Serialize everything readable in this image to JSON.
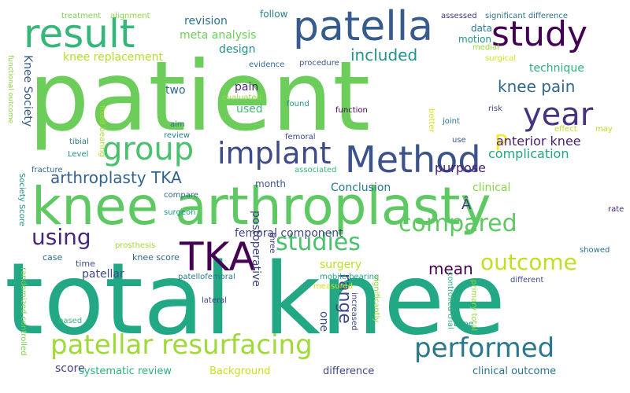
{
  "words": [
    {
      "text": "patient",
      "color": "#6ccd5a"
    },
    {
      "text": "total knee",
      "color": "#22a884"
    },
    {
      "text": "knee arthroplasty",
      "color": "#5ec962"
    },
    {
      "text": "patella",
      "color": "#365c8d"
    },
    {
      "text": "result",
      "color": "#35b779"
    },
    {
      "text": "study",
      "color": "#440154"
    },
    {
      "text": "Method",
      "color": "#3b528b"
    },
    {
      "text": "TKA",
      "color": "#440154"
    },
    {
      "text": "year",
      "color": "#46327e"
    },
    {
      "text": "group",
      "color": "#4ac16d"
    },
    {
      "text": "implant",
      "color": "#3e4a89"
    },
    {
      "text": "patellar resurfacing",
      "color": "#a0da39"
    },
    {
      "text": "performed",
      "color": "#2a788e"
    },
    {
      "text": "studies",
      "color": "#4ac16d"
    },
    {
      "text": "compared",
      "color": "#5ec962"
    },
    {
      "text": "outcome",
      "color": "#c2df23"
    },
    {
      "text": "using",
      "color": "#482878"
    },
    {
      "text": "arthroplasty TKA",
      "color": "#33638d"
    },
    {
      "text": "included",
      "color": "#21918c"
    },
    {
      "text": "knee pain",
      "color": "#31688e"
    },
    {
      "text": "P",
      "color": "#fde725"
    },
    {
      "text": "anterior knee",
      "color": "#481f70"
    },
    {
      "text": "complication",
      "color": "#21a585"
    },
    {
      "text": "purpose",
      "color": "#482576"
    },
    {
      "text": "range",
      "color": "#3f4788"
    },
    {
      "text": "mean",
      "color": "#440154"
    },
    {
      "text": "knee replacement",
      "color": "#b5de2b"
    },
    {
      "text": "meta analysis",
      "color": "#6ece58"
    },
    {
      "text": "revision",
      "color": "#2c728e"
    },
    {
      "text": "design",
      "color": "#21918c"
    },
    {
      "text": "pain",
      "color": "#482878"
    },
    {
      "text": "two",
      "color": "#31688e"
    },
    {
      "text": "used",
      "color": "#3fbc73"
    },
    {
      "text": "month",
      "color": "#39568c"
    },
    {
      "text": "Conclusion",
      "color": "#2a788e"
    },
    {
      "text": "clinical",
      "color": "#86d549"
    },
    {
      "text": "technique",
      "color": "#2db27d"
    },
    {
      "text": "follow",
      "color": "#26828e"
    },
    {
      "text": "data",
      "color": "#2a788e"
    },
    {
      "text": "motion",
      "color": "#21918c"
    },
    {
      "text": "Knee Society",
      "color": "#38598c"
    },
    {
      "text": "femoral component",
      "color": "#404688"
    },
    {
      "text": "postoperative",
      "color": "#414487"
    },
    {
      "text": "surgery",
      "color": "#bddf26"
    },
    {
      "text": "patellar",
      "color": "#3e4a89"
    },
    {
      "text": "one",
      "color": "#3b528b"
    },
    {
      "text": "score",
      "color": "#424086"
    },
    {
      "text": "systematic review",
      "color": "#2db27d"
    },
    {
      "text": "Background",
      "color": "#c8e020"
    },
    {
      "text": "difference",
      "color": "#3f4788"
    },
    {
      "text": "clinical outcome",
      "color": "#2c728e"
    },
    {
      "text": "case",
      "color": "#2e6e8e"
    },
    {
      "text": "knee score",
      "color": "#31688e"
    },
    {
      "text": "time",
      "color": "#3b528b"
    },
    {
      "text": "Â",
      "color": "#433e85"
    },
    {
      "text": "treatment",
      "color": "#7ad151"
    },
    {
      "text": "alignment",
      "color": "#8fd744"
    },
    {
      "text": "assessed",
      "color": "#453781"
    },
    {
      "text": "significant difference",
      "color": "#2c728e"
    },
    {
      "text": "medial",
      "color": "#9bd93c"
    },
    {
      "text": "evidence",
      "color": "#31688e"
    },
    {
      "text": "procedure",
      "color": "#3b528b"
    },
    {
      "text": "surgical",
      "color": "#d0e11c"
    },
    {
      "text": "evaluated",
      "color": "#90d743"
    },
    {
      "text": "found",
      "color": "#21918c"
    },
    {
      "text": "function",
      "color": "#440154"
    },
    {
      "text": "better",
      "color": "#d8e219"
    },
    {
      "text": "risk",
      "color": "#3e4989"
    },
    {
      "text": "joint",
      "color": "#2a788e"
    },
    {
      "text": "effect",
      "color": "#c0df25"
    },
    {
      "text": "may",
      "color": "#b8de29"
    },
    {
      "text": "review",
      "color": "#287c8e"
    },
    {
      "text": "aim",
      "color": "#2c728e"
    },
    {
      "text": "femoral",
      "color": "#3e4989"
    },
    {
      "text": "use",
      "color": "#3b528b"
    },
    {
      "text": "tibial",
      "color": "#2a788e"
    },
    {
      "text": "Level",
      "color": "#21918c"
    },
    {
      "text": "fracture",
      "color": "#33638d"
    },
    {
      "text": "associated",
      "color": "#35b779"
    },
    {
      "text": "compare",
      "color": "#31688e"
    },
    {
      "text": "surgeon",
      "color": "#1f988b"
    },
    {
      "text": "prosthesis",
      "color": "#a5db36"
    },
    {
      "text": "rate",
      "color": "#482878"
    },
    {
      "text": "showed",
      "color": "#2c728e"
    },
    {
      "text": "three",
      "color": "#46327e"
    },
    {
      "text": "patellofemoral",
      "color": "#2a788e"
    },
    {
      "text": "mobile bearing",
      "color": "#1fa188"
    },
    {
      "text": "measured",
      "color": "#d2e21b"
    },
    {
      "text": "controlled trial",
      "color": "#2fb47c"
    },
    {
      "text": "different",
      "color": "#3e4a89"
    },
    {
      "text": "lateral",
      "color": "#3f4788"
    },
    {
      "text": "increased",
      "color": "#404688"
    },
    {
      "text": "significantly",
      "color": "#93d741"
    },
    {
      "text": "primary total",
      "color": "#94d840"
    },
    {
      "text": "bone",
      "color": "#1fa088"
    },
    {
      "text": "based",
      "color": "#35b779"
    },
    {
      "text": "randomized controlled",
      "color": "#7ad151"
    },
    {
      "text": "Society Score",
      "color": "#20928c"
    },
    {
      "text": "functional outcome",
      "color": "#8bd646"
    },
    {
      "text": "fixed bearing",
      "color": "#aadc32"
    }
  ]
}
